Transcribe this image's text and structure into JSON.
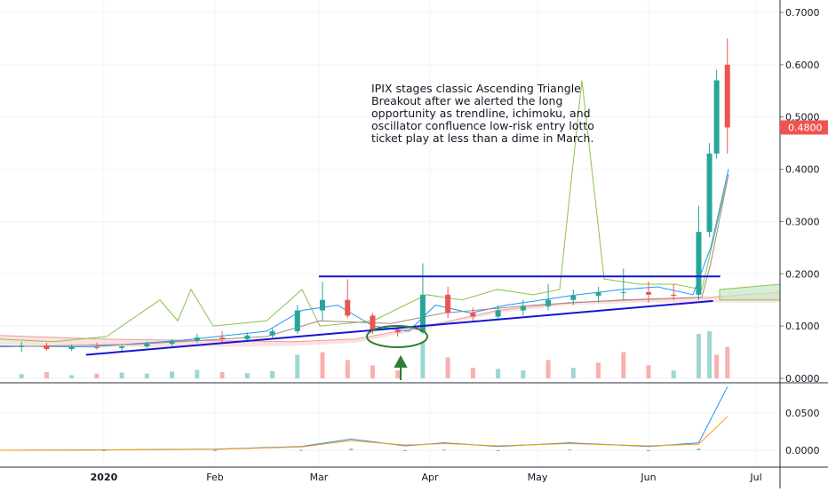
{
  "chart_data": {
    "type": "candlestick",
    "ticker": "IPIX",
    "annotation": [
      "IPIX stages classic Ascending Triangle",
      "Breakout after we alerted the long",
      "opportunity as trendline, ichimoku, and",
      "oscillator confluence low-risk entry lotto",
      "ticket play at less than a dime in March."
    ],
    "last_price": {
      "value": 0.48,
      "label": "0.4800",
      "color": "#ef5350"
    },
    "price_axis": {
      "min": 0.0,
      "max": 0.7,
      "ticks": [
        {
          "value": 0.7,
          "label": "0.7000"
        },
        {
          "value": 0.6,
          "label": "0.6000"
        },
        {
          "value": 0.5,
          "label": "0.5000"
        },
        {
          "value": 0.4,
          "label": "0.4000"
        },
        {
          "value": 0.3,
          "label": "0.3000"
        },
        {
          "value": 0.2,
          "label": "0.2000"
        },
        {
          "value": 0.1,
          "label": "0.1000"
        },
        {
          "value": 0.0,
          "label": "0.0000"
        }
      ]
    },
    "osc_axis": {
      "ticks": [
        {
          "value": 0.05,
          "label": "0.0500"
        },
        {
          "value": 0.0,
          "label": "0.0000"
        }
      ]
    },
    "time_axis": {
      "labels": [
        {
          "label": "2020",
          "date": "2020-01-01",
          "bold": true
        },
        {
          "label": "Feb",
          "date": "2020-02-01",
          "bold": false
        },
        {
          "label": "Mar",
          "date": "2020-03-01",
          "bold": false
        },
        {
          "label": "Apr",
          "date": "2020-04-01",
          "bold": false
        },
        {
          "label": "May",
          "date": "2020-05-01",
          "bold": false
        },
        {
          "label": "Jun",
          "date": "2020-06-01",
          "bold": false
        },
        {
          "label": "Jul",
          "date": "2020-07-01",
          "bold": false
        }
      ]
    },
    "colors": {
      "up": "#26a69a",
      "down": "#ef5350",
      "trendline": "#1515d6",
      "cloud": "#f7c9c7",
      "cloud_line": "#e8a09c",
      "green_line": "#8bc34a",
      "blue_line": "#2196f3",
      "orange_line": "#ff9800",
      "marker": "#2e7d32"
    },
    "resistance": {
      "value": 0.195,
      "from": "2020-03-01",
      "to": "2020-06-21"
    },
    "support_trendline": [
      {
        "date": "2019-12-27",
        "value": 0.045
      },
      {
        "date": "2020-06-19",
        "value": 0.148
      }
    ],
    "candles": [
      {
        "date": "2019-12-02",
        "o": 0.065,
        "h": 0.075,
        "l": 0.055,
        "c": 0.06
      },
      {
        "date": "2019-12-09",
        "o": 0.06,
        "h": 0.07,
        "l": 0.05,
        "c": 0.063
      },
      {
        "date": "2019-12-16",
        "o": 0.063,
        "h": 0.068,
        "l": 0.053,
        "c": 0.056
      },
      {
        "date": "2019-12-23",
        "o": 0.056,
        "h": 0.065,
        "l": 0.052,
        "c": 0.06
      },
      {
        "date": "2019-12-30",
        "o": 0.06,
        "h": 0.068,
        "l": 0.055,
        "c": 0.058
      },
      {
        "date": "2020-01-06",
        "o": 0.058,
        "h": 0.064,
        "l": 0.053,
        "c": 0.061
      },
      {
        "date": "2020-01-13",
        "o": 0.061,
        "h": 0.07,
        "l": 0.058,
        "c": 0.066
      },
      {
        "date": "2020-01-20",
        "o": 0.066,
        "h": 0.075,
        "l": 0.062,
        "c": 0.072
      },
      {
        "date": "2020-01-27",
        "o": 0.072,
        "h": 0.085,
        "l": 0.068,
        "c": 0.078
      },
      {
        "date": "2020-02-03",
        "o": 0.078,
        "h": 0.09,
        "l": 0.07,
        "c": 0.075
      },
      {
        "date": "2020-02-10",
        "o": 0.075,
        "h": 0.088,
        "l": 0.07,
        "c": 0.082
      },
      {
        "date": "2020-02-17",
        "o": 0.082,
        "h": 0.095,
        "l": 0.078,
        "c": 0.09
      },
      {
        "date": "2020-02-24",
        "o": 0.09,
        "h": 0.14,
        "l": 0.085,
        "c": 0.13
      },
      {
        "date": "2020-03-02",
        "o": 0.13,
        "h": 0.185,
        "l": 0.11,
        "c": 0.15
      },
      {
        "date": "2020-03-09",
        "o": 0.15,
        "h": 0.19,
        "l": 0.115,
        "c": 0.12
      },
      {
        "date": "2020-03-16",
        "o": 0.12,
        "h": 0.125,
        "l": 0.085,
        "c": 0.092
      },
      {
        "date": "2020-03-23",
        "o": 0.092,
        "h": 0.1,
        "l": 0.08,
        "c": 0.088
      },
      {
        "date": "2020-03-30",
        "o": 0.088,
        "h": 0.22,
        "l": 0.085,
        "c": 0.16
      },
      {
        "date": "2020-04-06",
        "o": 0.16,
        "h": 0.175,
        "l": 0.115,
        "c": 0.125
      },
      {
        "date": "2020-04-13",
        "o": 0.125,
        "h": 0.135,
        "l": 0.11,
        "c": 0.118
      },
      {
        "date": "2020-04-20",
        "o": 0.118,
        "h": 0.14,
        "l": 0.112,
        "c": 0.13
      },
      {
        "date": "2020-04-27",
        "o": 0.13,
        "h": 0.15,
        "l": 0.12,
        "c": 0.138
      },
      {
        "date": "2020-05-04",
        "o": 0.138,
        "h": 0.18,
        "l": 0.13,
        "c": 0.15
      },
      {
        "date": "2020-05-11",
        "o": 0.15,
        "h": 0.17,
        "l": 0.14,
        "c": 0.158
      },
      {
        "date": "2020-05-18",
        "o": 0.158,
        "h": 0.175,
        "l": 0.145,
        "c": 0.165
      },
      {
        "date": "2020-05-25",
        "o": 0.165,
        "h": 0.21,
        "l": 0.15,
        "c": 0.165
      },
      {
        "date": "2020-06-01",
        "o": 0.165,
        "h": 0.185,
        "l": 0.145,
        "c": 0.16
      },
      {
        "date": "2020-06-08",
        "o": 0.16,
        "h": 0.18,
        "l": 0.15,
        "c": 0.158
      },
      {
        "date": "2020-06-15",
        "o": 0.16,
        "h": 0.33,
        "l": 0.15,
        "c": 0.28
      },
      {
        "date": "2020-06-18",
        "o": 0.28,
        "h": 0.45,
        "l": 0.27,
        "c": 0.43
      },
      {
        "date": "2020-06-20",
        "o": 0.43,
        "h": 0.59,
        "l": 0.42,
        "c": 0.57
      },
      {
        "date": "2020-06-23",
        "o": 0.6,
        "h": 0.65,
        "l": 0.43,
        "c": 0.48
      }
    ],
    "volume": [
      {
        "date": "2019-12-02",
        "v": 0.01,
        "up": false
      },
      {
        "date": "2019-12-09",
        "v": 0.008,
        "up": true
      },
      {
        "date": "2019-12-16",
        "v": 0.012,
        "up": false
      },
      {
        "date": "2019-12-23",
        "v": 0.006,
        "up": true
      },
      {
        "date": "2019-12-30",
        "v": 0.009,
        "up": false
      },
      {
        "date": "2020-01-06",
        "v": 0.011,
        "up": true
      },
      {
        "date": "2020-01-13",
        "v": 0.009,
        "up": true
      },
      {
        "date": "2020-01-20",
        "v": 0.013,
        "up": true
      },
      {
        "date": "2020-01-27",
        "v": 0.016,
        "up": true
      },
      {
        "date": "2020-02-03",
        "v": 0.012,
        "up": false
      },
      {
        "date": "2020-02-10",
        "v": 0.01,
        "up": true
      },
      {
        "date": "2020-02-17",
        "v": 0.014,
        "up": true
      },
      {
        "date": "2020-02-24",
        "v": 0.045,
        "up": true
      },
      {
        "date": "2020-03-02",
        "v": 0.05,
        "up": false
      },
      {
        "date": "2020-03-09",
        "v": 0.035,
        "up": false
      },
      {
        "date": "2020-03-16",
        "v": 0.025,
        "up": false
      },
      {
        "date": "2020-03-23",
        "v": 0.015,
        "up": false
      },
      {
        "date": "2020-03-30",
        "v": 0.07,
        "up": true
      },
      {
        "date": "2020-04-06",
        "v": 0.04,
        "up": false
      },
      {
        "date": "2020-04-13",
        "v": 0.02,
        "up": false
      },
      {
        "date": "2020-04-20",
        "v": 0.018,
        "up": true
      },
      {
        "date": "2020-04-27",
        "v": 0.015,
        "up": true
      },
      {
        "date": "2020-05-04",
        "v": 0.035,
        "up": false
      },
      {
        "date": "2020-05-11",
        "v": 0.02,
        "up": true
      },
      {
        "date": "2020-05-18",
        "v": 0.03,
        "up": false
      },
      {
        "date": "2020-05-25",
        "v": 0.05,
        "up": false
      },
      {
        "date": "2020-06-01",
        "v": 0.025,
        "up": false
      },
      {
        "date": "2020-06-08",
        "v": 0.015,
        "up": true
      },
      {
        "date": "2020-06-15",
        "v": 0.085,
        "up": true
      },
      {
        "date": "2020-06-18",
        "v": 0.09,
        "up": true
      },
      {
        "date": "2020-06-20",
        "v": 0.045,
        "up": false
      },
      {
        "date": "2020-06-23",
        "v": 0.06,
        "up": false
      }
    ],
    "oscillator": {
      "blue": [
        {
          "date": "2019-12-02",
          "v": 0.0
        },
        {
          "date": "2020-01-01",
          "v": 0.0005
        },
        {
          "date": "2020-02-01",
          "v": 0.0015
        },
        {
          "date": "2020-02-25",
          "v": 0.005
        },
        {
          "date": "2020-03-10",
          "v": 0.015
        },
        {
          "date": "2020-03-25",
          "v": 0.006
        },
        {
          "date": "2020-04-05",
          "v": 0.01
        },
        {
          "date": "2020-04-20",
          "v": 0.005
        },
        {
          "date": "2020-05-10",
          "v": 0.01
        },
        {
          "date": "2020-06-01",
          "v": 0.005
        },
        {
          "date": "2020-06-15",
          "v": 0.01
        },
        {
          "date": "2020-06-23",
          "v": 0.085
        }
      ],
      "orange": [
        {
          "date": "2019-12-02",
          "v": 0.0
        },
        {
          "date": "2020-01-01",
          "v": 0.0003
        },
        {
          "date": "2020-02-01",
          "v": 0.0012
        },
        {
          "date": "2020-02-25",
          "v": 0.0045
        },
        {
          "date": "2020-03-10",
          "v": 0.013
        },
        {
          "date": "2020-03-25",
          "v": 0.007
        },
        {
          "date": "2020-04-05",
          "v": 0.009
        },
        {
          "date": "2020-04-20",
          "v": 0.006
        },
        {
          "date": "2020-05-10",
          "v": 0.009
        },
        {
          "date": "2020-06-01",
          "v": 0.006
        },
        {
          "date": "2020-06-15",
          "v": 0.008
        },
        {
          "date": "2020-06-23",
          "v": 0.045
        }
      ]
    }
  }
}
